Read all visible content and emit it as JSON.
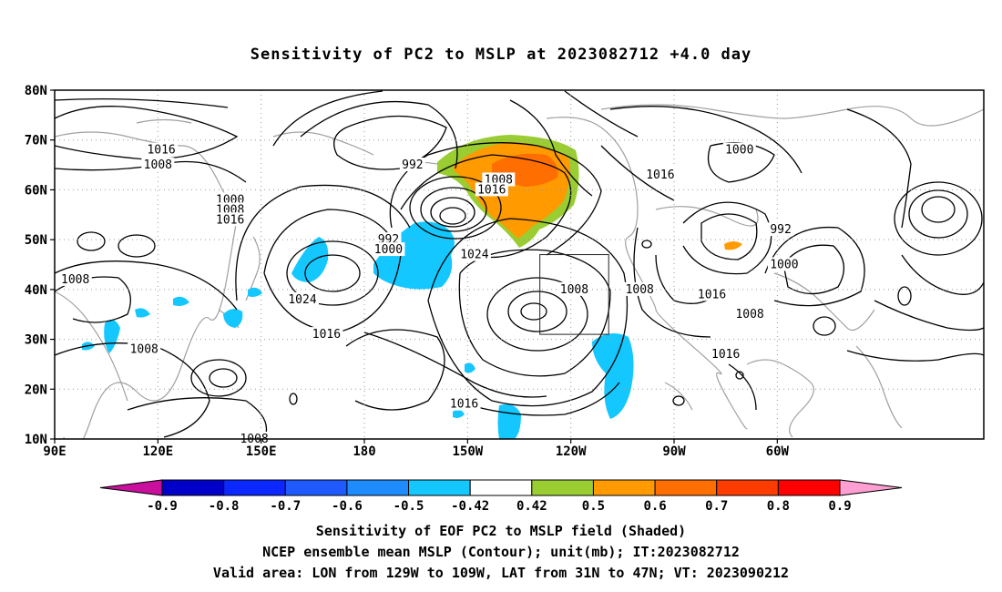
{
  "title": "Sensitivity of PC2 to MSLP at 2023082712 +4.0 day",
  "map": {
    "lat_ticks": [
      "80N",
      "70N",
      "60N",
      "50N",
      "40N",
      "30N",
      "20N",
      "10N"
    ],
    "lon_ticks": [
      "90E",
      "120E",
      "150E",
      "180",
      "150W",
      "120W",
      "90W",
      "60W"
    ],
    "box_region": "LON 129W to 109W, LAT 31N to 47N",
    "contour_labels": [
      {
        "label": "1016",
        "lon": 121,
        "lat": 68
      },
      {
        "label": "1008",
        "lon": 120,
        "lat": 65
      },
      {
        "label": "992",
        "lon": -166,
        "lat": 65
      },
      {
        "label": "1000",
        "lon": 141,
        "lat": 58
      },
      {
        "label": "1008",
        "lon": 141,
        "lat": 56
      },
      {
        "label": "1016",
        "lon": 141,
        "lat": 54
      },
      {
        "label": "992",
        "lon": -173,
        "lat": 50
      },
      {
        "label": "1000",
        "lon": -173,
        "lat": 48
      },
      {
        "label": "1008",
        "lon": -141,
        "lat": 62
      },
      {
        "label": "1016",
        "lon": -143,
        "lat": 60
      },
      {
        "label": "1024",
        "lon": -148,
        "lat": 47
      },
      {
        "label": "1024",
        "lon": 162,
        "lat": 38
      },
      {
        "label": "1008",
        "lon": 96,
        "lat": 42
      },
      {
        "label": "1008",
        "lon": 116,
        "lat": 28
      },
      {
        "label": "1016",
        "lon": 169,
        "lat": 31
      },
      {
        "label": "1016",
        "lon": -151,
        "lat": 17
      },
      {
        "label": "1008",
        "lon": -119,
        "lat": 40
      },
      {
        "label": "1008",
        "lon": -100,
        "lat": 40
      },
      {
        "label": "1016",
        "lon": -79,
        "lat": 39
      },
      {
        "label": "1000",
        "lon": -71,
        "lat": 68
      },
      {
        "label": "1016",
        "lon": -94,
        "lat": 63
      },
      {
        "label": "992",
        "lon": -59,
        "lat": 52
      },
      {
        "label": "1000",
        "lon": -58,
        "lat": 45
      },
      {
        "label": "1008",
        "lon": -68,
        "lat": 35
      },
      {
        "label": "1016",
        "lon": -75,
        "lat": 27
      },
      {
        "label": "1008",
        "lon": 148,
        "lat": 10
      }
    ]
  },
  "colorbar": {
    "labels": [
      "-0.9",
      "-0.8",
      "-0.7",
      "-0.6",
      "-0.5",
      "-0.42",
      "0.42",
      "0.5",
      "0.6",
      "0.7",
      "0.8",
      "0.9"
    ],
    "colors": [
      "#0000c8",
      "#0a28ff",
      "#1e5aff",
      "#1e8cff",
      "#14c8ff",
      "#ffffff",
      "#9acd32",
      "#ff9a00",
      "#ff6e00",
      "#ff3c00",
      "#ff0000"
    ],
    "end_low": "#c8109c",
    "end_high": "#ff9ed2"
  },
  "footer": {
    "line1": "Sensitivity of EOF PC2 to MSLP field (Shaded)",
    "line2": "NCEP ensemble mean MSLP (Contour); unit(mb); IT:2023082712",
    "line3": "Valid area: LON from 129W to 109W, LAT from 31N to 47N; VT: 2023090212"
  }
}
